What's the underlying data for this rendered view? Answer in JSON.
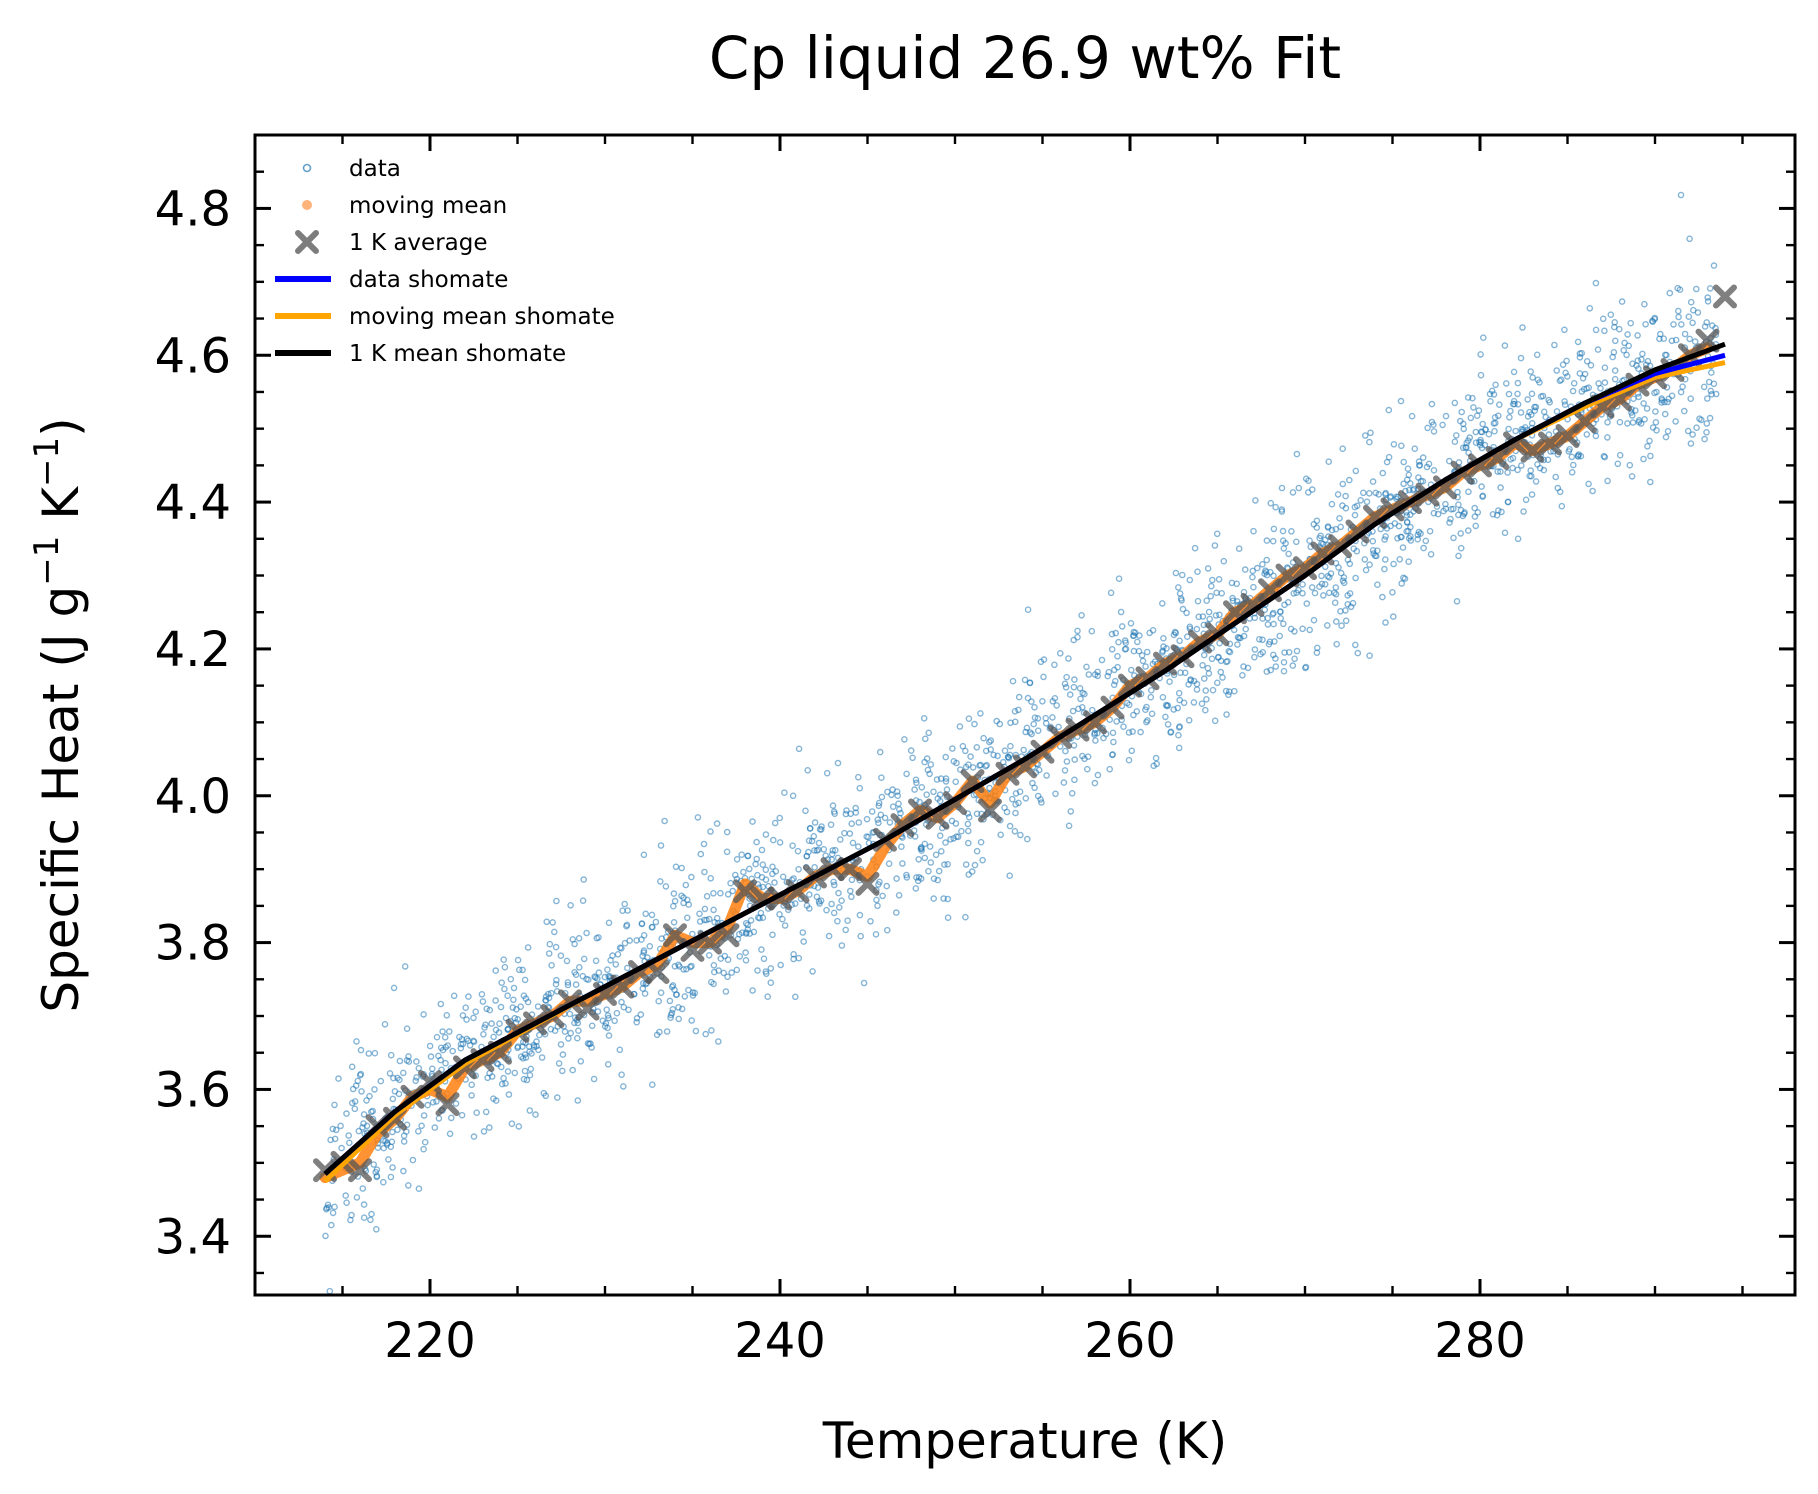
{
  "chart_data": {
    "type": "scatter",
    "title": "Cp liquid 26.9 wt% Fit",
    "xlabel": "Temperature (K)",
    "ylabel_main": "Specific Heat (J g",
    "ylabel_sup1": "−1",
    "ylabel_mid": " K",
    "ylabel_sup2": "−1",
    "ylabel_end": ")",
    "xlim": [
      210,
      298
    ],
    "ylim": [
      3.32,
      4.9
    ],
    "x_ticks": [
      220,
      240,
      260,
      280
    ],
    "y_ticks": [
      3.4,
      3.6,
      3.8,
      4.0,
      4.2,
      4.4,
      4.6,
      4.8
    ],
    "x_tick_labels": [
      "220",
      "240",
      "260",
      "280"
    ],
    "y_tick_labels": [
      "3.4",
      "3.6",
      "3.8",
      "4.0",
      "4.2",
      "4.4",
      "4.6",
      "4.8"
    ],
    "x_minor_step": 5,
    "y_minor_step": 0.05,
    "grid": false,
    "legend_position": "top-left",
    "legend": [
      {
        "label": "data",
        "kind": "circle",
        "color": "#1f77b4"
      },
      {
        "label": "moving mean",
        "kind": "dot",
        "color": "#ffb27a"
      },
      {
        "label": "1 K average",
        "kind": "cross",
        "color": "#666666"
      },
      {
        "label": "data shomate",
        "kind": "line",
        "color": "#0000ff"
      },
      {
        "label": "moving mean shomate",
        "kind": "line",
        "color": "#ffa500"
      },
      {
        "label": "1 K mean shomate",
        "kind": "line",
        "color": "#000000"
      }
    ],
    "scatter_generation": {
      "x_range": [
        214,
        293.5
      ],
      "count": 2200,
      "noise_sd": 0.06,
      "seed": 7,
      "note": "dense noisy scatter around the fit curve"
    },
    "avg_1K": {
      "x": [
        214,
        215,
        216,
        217,
        218,
        219,
        220,
        221,
        222,
        223,
        224,
        225,
        226,
        227,
        228,
        229,
        230,
        231,
        232,
        233,
        234,
        235,
        236,
        237,
        238,
        239,
        240,
        241,
        242,
        243,
        244,
        245,
        246,
        247,
        248,
        249,
        250,
        251,
        252,
        253,
        254,
        255,
        256,
        257,
        258,
        259,
        260,
        261,
        262,
        263,
        264,
        265,
        266,
        267,
        268,
        269,
        270,
        271,
        272,
        273,
        274,
        275,
        276,
        277,
        278,
        279,
        280,
        281,
        282,
        283,
        284,
        285,
        286,
        287,
        288,
        289,
        290,
        291,
        292,
        293,
        294
      ],
      "y": [
        3.49,
        3.5,
        3.49,
        3.55,
        3.56,
        3.59,
        3.61,
        3.58,
        3.63,
        3.64,
        3.65,
        3.68,
        3.69,
        3.7,
        3.72,
        3.71,
        3.73,
        3.74,
        3.76,
        3.76,
        3.81,
        3.79,
        3.8,
        3.81,
        3.87,
        3.86,
        3.86,
        3.87,
        3.89,
        3.9,
        3.9,
        3.88,
        3.94,
        3.96,
        3.98,
        3.97,
        3.99,
        4.02,
        3.98,
        4.03,
        4.04,
        4.06,
        4.08,
        4.09,
        4.1,
        4.12,
        4.15,
        4.16,
        4.18,
        4.19,
        4.21,
        4.22,
        4.25,
        4.26,
        4.28,
        4.3,
        4.31,
        4.33,
        4.34,
        4.36,
        4.38,
        4.39,
        4.4,
        4.41,
        4.42,
        4.44,
        4.45,
        4.46,
        4.48,
        4.47,
        4.48,
        4.49,
        4.51,
        4.53,
        4.54,
        4.56,
        4.57,
        4.58,
        4.6,
        4.62,
        4.68
      ]
    },
    "moving_mean": {
      "x": [
        214,
        215,
        216,
        217,
        218,
        219,
        220,
        221,
        222,
        223,
        224,
        225,
        226,
        227,
        228,
        229,
        230,
        231,
        232,
        233,
        234,
        235,
        236,
        237,
        238,
        239,
        240,
        241,
        242,
        243,
        244,
        245,
        246,
        247,
        248,
        249,
        250,
        251,
        252,
        253,
        254,
        255,
        256,
        257,
        258,
        259,
        260,
        261,
        262,
        263,
        264,
        265,
        266,
        267,
        268,
        269,
        270,
        271,
        272,
        273,
        274,
        275,
        276,
        277,
        278,
        279,
        280,
        281,
        282,
        283,
        284,
        285,
        286,
        287,
        288,
        289,
        290,
        291,
        292,
        293
      ],
      "y": [
        3.48,
        3.49,
        3.5,
        3.54,
        3.56,
        3.59,
        3.6,
        3.59,
        3.63,
        3.64,
        3.65,
        3.68,
        3.69,
        3.7,
        3.72,
        3.72,
        3.73,
        3.74,
        3.76,
        3.77,
        3.81,
        3.8,
        3.8,
        3.82,
        3.88,
        3.86,
        3.86,
        3.87,
        3.89,
        3.9,
        3.9,
        3.89,
        3.93,
        3.96,
        3.98,
        3.97,
        3.99,
        4.02,
        3.99,
        4.03,
        4.04,
        4.06,
        4.08,
        4.09,
        4.1,
        4.12,
        4.15,
        4.16,
        4.18,
        4.19,
        4.21,
        4.22,
        4.25,
        4.26,
        4.28,
        4.3,
        4.31,
        4.33,
        4.34,
        4.36,
        4.38,
        4.39,
        4.4,
        4.41,
        4.42,
        4.44,
        4.45,
        4.46,
        4.48,
        4.47,
        4.48,
        4.49,
        4.51,
        4.53,
        4.54,
        4.56,
        4.57,
        4.58,
        4.6,
        4.61
      ]
    },
    "fit_1K_mean": {
      "x": [
        214,
        218,
        222,
        226,
        230,
        234,
        238,
        242,
        246,
        250,
        254,
        258,
        262,
        266,
        270,
        274,
        278,
        282,
        286,
        290,
        294
      ],
      "y": [
        3.485,
        3.57,
        3.64,
        3.69,
        3.74,
        3.79,
        3.84,
        3.89,
        3.94,
        3.995,
        4.05,
        4.11,
        4.17,
        4.235,
        4.3,
        4.37,
        4.43,
        4.485,
        4.535,
        4.58,
        4.615
      ]
    },
    "fit_data": {
      "x": [
        214,
        218,
        222,
        226,
        230,
        234,
        238,
        242,
        246,
        250,
        254,
        258,
        262,
        266,
        270,
        274,
        278,
        282,
        286,
        290,
        294
      ],
      "y": [
        3.485,
        3.57,
        3.64,
        3.69,
        3.74,
        3.79,
        3.84,
        3.89,
        3.94,
        3.995,
        4.05,
        4.11,
        4.17,
        4.235,
        4.3,
        4.37,
        4.43,
        4.485,
        4.535,
        4.575,
        4.6
      ]
    },
    "fit_moving_mean": {
      "x": [
        214,
        218,
        222,
        226,
        230,
        234,
        238,
        242,
        246,
        250,
        254,
        258,
        262,
        266,
        270,
        274,
        278,
        282,
        286,
        290,
        294
      ],
      "y": [
        3.475,
        3.565,
        3.635,
        3.688,
        3.74,
        3.79,
        3.84,
        3.89,
        3.94,
        3.995,
        4.05,
        4.11,
        4.17,
        4.235,
        4.3,
        4.37,
        4.43,
        4.485,
        4.53,
        4.57,
        4.59
      ]
    },
    "colors": {
      "data": "#1f77b4",
      "moving_mean": "#ff7f0e",
      "avg_marker": "#555555",
      "fit_data": "#0000ff",
      "fit_moving_mean": "#ffa500",
      "fit_1K": "#000000"
    }
  }
}
